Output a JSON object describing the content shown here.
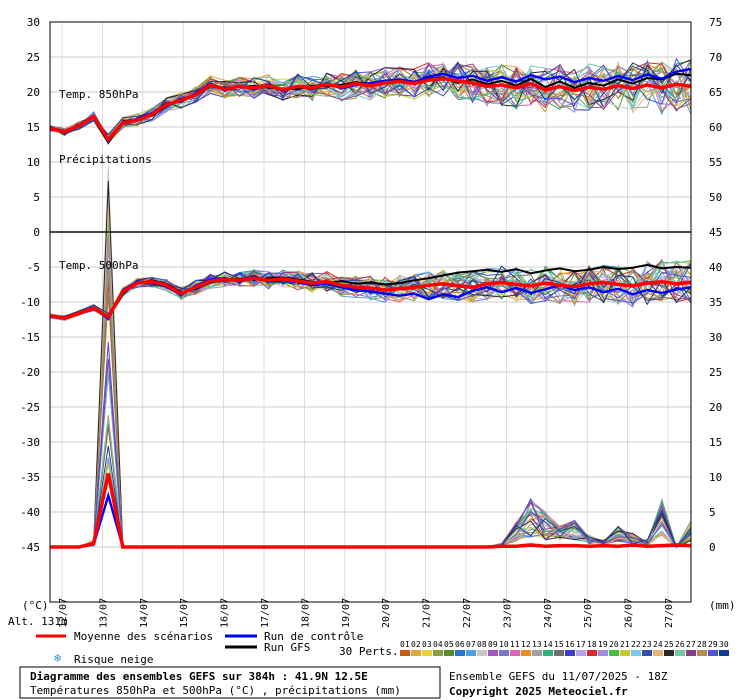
{
  "chart_data": {
    "type": "line",
    "title": "Diagramme des ensembles GEFS sur 384h : 41.9N 12.5E",
    "subtitle": "Températures 850hPa et 500hPa (°C) , précipitations (mm)",
    "left_axis": {
      "unit": "(°C)",
      "ticks": [
        "30",
        "25",
        "20",
        "15",
        "10",
        "5",
        "0",
        "-5",
        "-10",
        "-15",
        "-20",
        "-25",
        "-30",
        "-35",
        "-40",
        "-45"
      ]
    },
    "right_axis": {
      "unit": "(mm)",
      "ticks": [
        "75",
        "70",
        "65",
        "60",
        "55",
        "50",
        "45",
        "40",
        "35",
        "30",
        "25",
        "20",
        "15",
        "10",
        "5",
        "0"
      ]
    },
    "x_dates": [
      "12/07",
      "13/07",
      "14/07",
      "15/07",
      "16/07",
      "17/07",
      "18/07",
      "19/07",
      "20/07",
      "21/07",
      "22/07",
      "23/07",
      "24/07",
      "25/07",
      "26/07",
      "27/07"
    ],
    "panel_labels": {
      "t850": "Temp. 850hPa",
      "precip": "Précipitations",
      "t500": "Temp. 500hPa"
    },
    "altitude": "Alt. 131m",
    "t850_mean": [
      14.8,
      14.3,
      15.2,
      16.5,
      13.2,
      15.6,
      16.0,
      16.8,
      18.2,
      18.8,
      19.6,
      21.0,
      20.4,
      20.8,
      20.6,
      20.9,
      20.3,
      20.8,
      20.6,
      21.1,
      20.7,
      21.2,
      20.9,
      21.3,
      21.5,
      21.2,
      21.7,
      21.9,
      21.6,
      21.3,
      20.8,
      21.0,
      20.6,
      21.2,
      20.3,
      20.8,
      20.2,
      20.7,
      20.4,
      20.9,
      20.5,
      21.0,
      20.6,
      21.1,
      20.8
    ],
    "t850_control": [
      14.9,
      14.4,
      15.3,
      16.6,
      13.0,
      15.5,
      16.2,
      16.9,
      18.4,
      18.6,
      19.8,
      21.2,
      20.2,
      20.9,
      20.4,
      21.1,
      20.1,
      20.9,
      20.4,
      21.3,
      20.5,
      21.0,
      21.3,
      21.6,
      21.8,
      21.4,
      22.2,
      22.6,
      22.0,
      22.3,
      21.6,
      22.1,
      21.5,
      22.4,
      21.8,
      22.2,
      21.4,
      22.0,
      21.6,
      22.3,
      21.7,
      22.5,
      21.9,
      22.9,
      23.3
    ],
    "t850_gfs": [
      15.0,
      14.2,
      15.1,
      16.4,
      12.8,
      15.8,
      16.1,
      16.6,
      18.0,
      19.0,
      19.5,
      20.8,
      20.6,
      20.7,
      20.9,
      20.6,
      20.5,
      20.4,
      20.9,
      20.8,
      21.0,
      21.4,
      21.1,
      21.5,
      21.7,
      21.5,
      21.9,
      22.1,
      21.3,
      21.8,
      21.1,
      21.6,
      20.9,
      21.9,
      20.7,
      21.5,
      20.6,
      21.3,
      20.9,
      21.8,
      21.2,
      22.0,
      21.8,
      22.6,
      22.4
    ],
    "t500_mean": [
      -12.0,
      -12.3,
      -11.6,
      -10.9,
      -12.1,
      -8.5,
      -7.3,
      -7.1,
      -7.6,
      -8.8,
      -7.9,
      -7.0,
      -6.8,
      -6.9,
      -6.6,
      -6.9,
      -6.7,
      -7.0,
      -7.3,
      -7.1,
      -7.6,
      -7.9,
      -8.0,
      -8.3,
      -8.1,
      -7.9,
      -7.6,
      -7.4,
      -7.7,
      -7.9,
      -7.4,
      -7.2,
      -7.5,
      -7.7,
      -7.3,
      -7.6,
      -7.8,
      -7.4,
      -7.2,
      -7.5,
      -7.7,
      -7.3,
      -7.1,
      -7.4,
      -7.2
    ],
    "t500_control": [
      -12.1,
      -12.4,
      -11.7,
      -10.8,
      -12.4,
      -8.3,
      -7.1,
      -7.3,
      -7.8,
      -9.0,
      -7.7,
      -6.8,
      -6.6,
      -7.1,
      -6.4,
      -7.1,
      -6.9,
      -7.2,
      -7.6,
      -7.4,
      -7.9,
      -8.3,
      -8.5,
      -8.8,
      -9.1,
      -8.8,
      -9.6,
      -8.9,
      -9.3,
      -8.4,
      -7.9,
      -8.6,
      -8.0,
      -8.7,
      -8.2,
      -7.6,
      -8.3,
      -7.9,
      -8.6,
      -8.1,
      -8.9,
      -8.3,
      -8.7,
      -8.2,
      -7.9
    ],
    "t500_gfs": [
      -11.9,
      -12.2,
      -11.5,
      -11.0,
      -12.0,
      -8.6,
      -7.4,
      -6.9,
      -7.4,
      -8.6,
      -8.1,
      -7.2,
      -6.9,
      -6.7,
      -6.8,
      -6.6,
      -6.5,
      -6.8,
      -7.1,
      -7.3,
      -7.0,
      -7.4,
      -7.2,
      -7.5,
      -7.3,
      -6.9,
      -6.6,
      -6.2,
      -5.8,
      -5.6,
      -5.4,
      -5.7,
      -5.3,
      -5.9,
      -5.5,
      -5.2,
      -5.6,
      -5.4,
      -5.0,
      -5.3,
      -5.1,
      -4.7,
      -5.2,
      -5.0,
      -5.1
    ],
    "precip_mean": [
      0,
      0,
      0,
      0.5,
      10.5,
      0,
      0,
      0,
      0,
      0,
      0,
      0,
      0,
      0,
      0,
      0,
      0,
      0,
      0,
      0,
      0,
      0,
      0,
      0,
      0,
      0,
      0,
      0,
      0,
      0,
      0,
      0.1,
      0.1,
      0.3,
      0.1,
      0.2,
      0.2,
      0.1,
      0.2,
      0.1,
      0.3,
      0.1,
      0.2,
      0.3,
      0.2
    ],
    "precip_max": [
      0,
      0,
      0,
      1,
      55,
      0,
      0,
      0,
      0,
      0,
      0,
      0,
      0,
      0,
      0,
      0,
      0,
      0,
      0,
      0,
      0,
      0,
      0,
      0,
      0,
      0,
      0,
      0,
      0,
      0,
      0,
      0.5,
      4,
      7,
      5,
      3,
      4,
      2,
      1,
      3,
      2,
      1,
      7,
      0,
      4
    ],
    "legend": {
      "mean": "Moyenne des scénarios",
      "control": "Run de contrôle",
      "gfs": "Run GFS",
      "snow": "Risque neige",
      "perts": "30 Perts.",
      "pert_numbers": [
        "01",
        "02",
        "03",
        "04",
        "05",
        "06",
        "07",
        "08",
        "09",
        "10",
        "11",
        "12",
        "13",
        "14",
        "15",
        "16",
        "17",
        "18",
        "19",
        "20",
        "21",
        "22",
        "23",
        "24",
        "25",
        "26",
        "27",
        "28",
        "29",
        "30"
      ],
      "pert_colors": [
        "#c85a14",
        "#dcaa3c",
        "#e6d23c",
        "#8ca03c",
        "#5a8c28",
        "#2878c8",
        "#50a0dc",
        "#c8c8c8",
        "#a05ac8",
        "#7878c8",
        "#dc64b4",
        "#f08c28",
        "#a0a0a0",
        "#28b478",
        "#6e6e6e",
        "#3c3cc8",
        "#b4a0e6",
        "#dc2828",
        "#a08cdc",
        "#46be46",
        "#c8c832",
        "#78c8f0",
        "#3250a0",
        "#e6b478",
        "#282828",
        "#6ec8a0",
        "#8c3c8c",
        "#b48c50",
        "#5050dc",
        "#143c8c"
      ]
    },
    "footer": {
      "run_info": "Ensemble GEFS du 11/07/2025 - 18Z",
      "copyright": "Copyright 2025 Meteociel.fr"
    },
    "colors": {
      "mean": "#ff0000",
      "control": "#0000ff",
      "gfs": "#000000",
      "grid": "#999999"
    }
  }
}
